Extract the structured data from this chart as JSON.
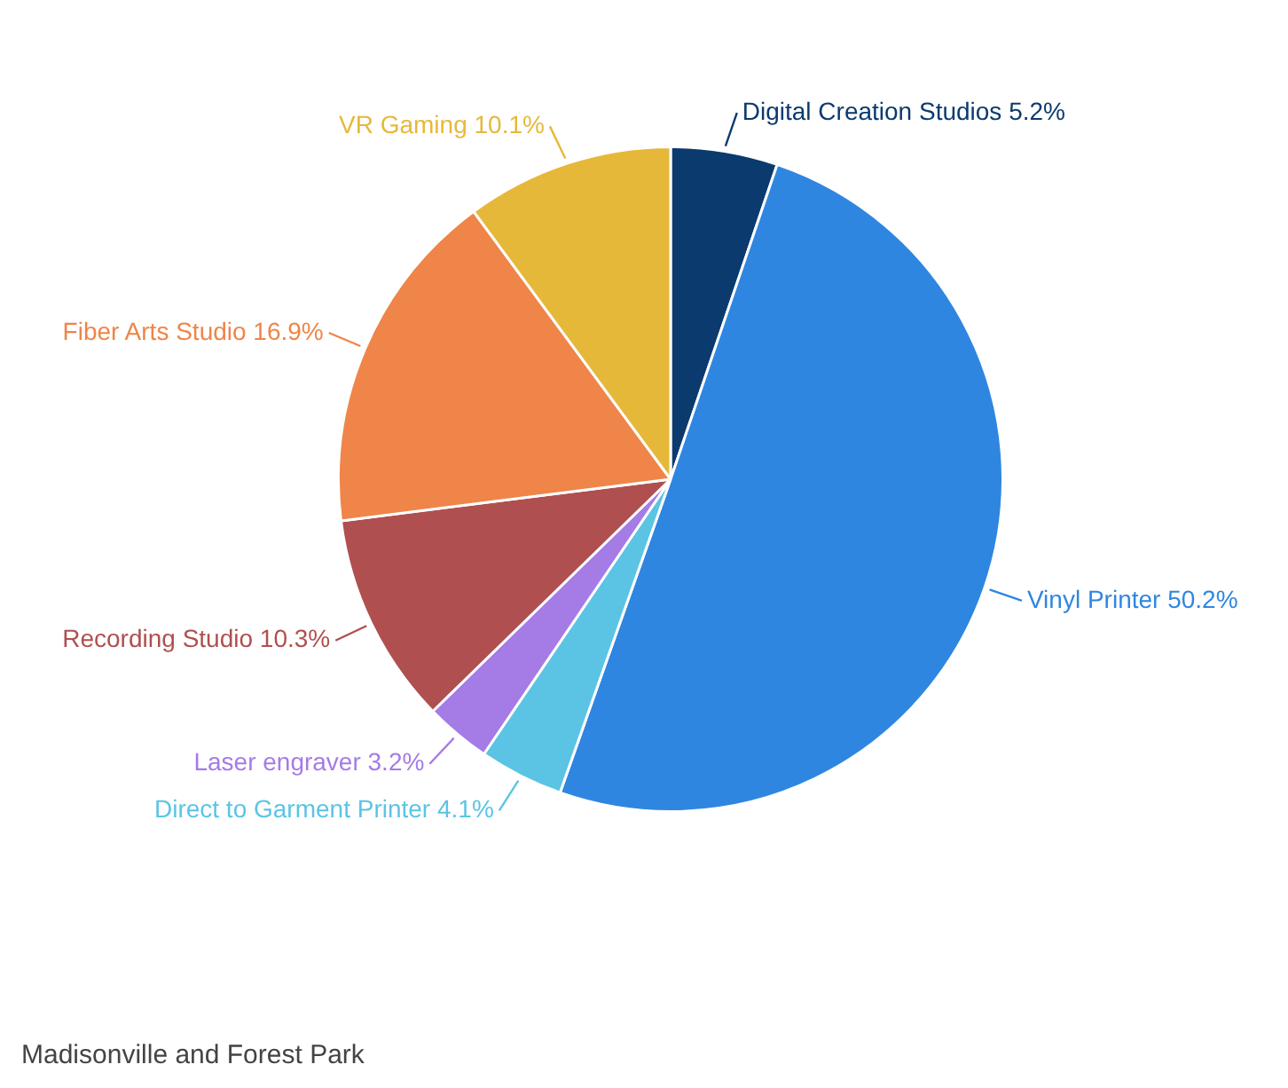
{
  "chart_data": {
    "type": "pie",
    "categories": [
      "Digital Creation Studios",
      "Vinyl Printer",
      "Direct to Garment Printer",
      "Laser engraver",
      "Recording Studio",
      "Fiber Arts Studio",
      "VR Gaming"
    ],
    "values": [
      5.2,
      50.2,
      4.1,
      3.2,
      10.3,
      16.9,
      10.1
    ],
    "value_labels": [
      "5.2%",
      "50.2%",
      "4.1%",
      "3.2%",
      "10.3%",
      "16.9%",
      "10.1%"
    ],
    "colors": [
      "#0b3a6e",
      "#2f86e0",
      "#5bc4e4",
      "#a57be6",
      "#b04f4f",
      "#ef8549",
      "#e6b83a"
    ],
    "legend": false,
    "annotations": [
      "Madisonville and Forest Park"
    ]
  }
}
